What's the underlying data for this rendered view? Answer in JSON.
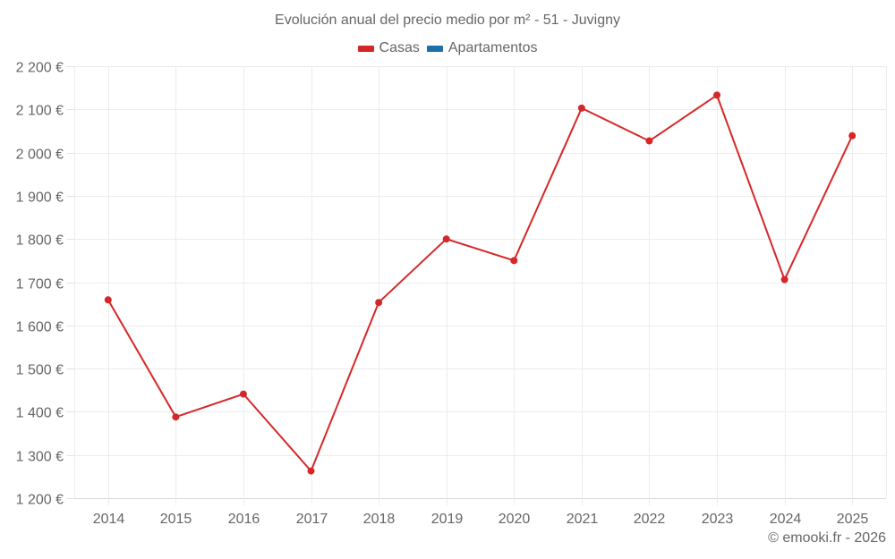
{
  "chart_data": {
    "type": "line",
    "title": "Evolución anual del precio medio por m² - 51 - Juvigny",
    "xlabel": "",
    "ylabel": "",
    "categories": [
      "2014",
      "2015",
      "2016",
      "2017",
      "2018",
      "2019",
      "2020",
      "2021",
      "2022",
      "2023",
      "2024",
      "2025"
    ],
    "series": [
      {
        "name": "Casas",
        "color": "#d62728",
        "values": [
          1659,
          1388,
          1441,
          1263,
          1653,
          1800,
          1750,
          2103,
          2027,
          2133,
          1706,
          2039
        ]
      },
      {
        "name": "Apartamentos",
        "color": "#1f6fa8",
        "values": []
      }
    ],
    "ylim": [
      1200,
      2200
    ],
    "yticks": [
      1200,
      1300,
      1400,
      1500,
      1600,
      1700,
      1800,
      1900,
      2000,
      2100,
      2200
    ],
    "ytick_labels": [
      "1 200 €",
      "1 300 €",
      "1 400 €",
      "1 500 €",
      "1 600 €",
      "1 700 €",
      "1 800 €",
      "1 900 €",
      "2 000 €",
      "2 100 €",
      "2 200 €"
    ],
    "grid": true,
    "legend_position": "top"
  },
  "legend": [
    {
      "label": "Casas",
      "color": "#d62728"
    },
    {
      "label": "Apartamentos",
      "color": "#1f6fa8"
    }
  ],
  "credit": "© emooki.fr - 2026"
}
